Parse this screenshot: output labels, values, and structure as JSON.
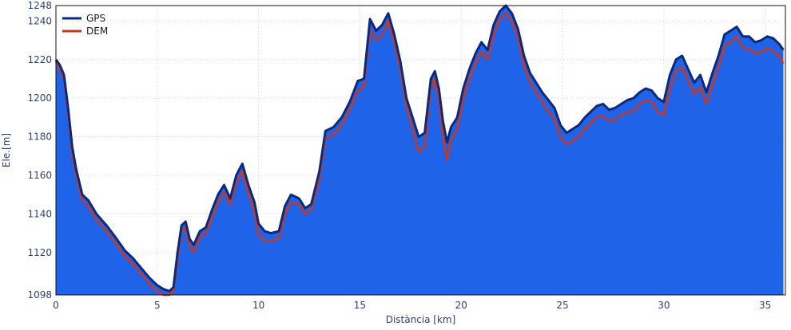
{
  "chart_data": {
    "type": "area",
    "xlabel": "Distància [km]",
    "ylabel": "Ele.[m]",
    "xlim": [
      0,
      36
    ],
    "ylim": [
      1098,
      1248
    ],
    "xticks": [
      0,
      5,
      10,
      15,
      20,
      25,
      30,
      35
    ],
    "yticks": [
      1098,
      1120,
      1140,
      1160,
      1180,
      1200,
      1220,
      1240,
      1248
    ],
    "grid": true,
    "legend_position": "top-left",
    "colors": {
      "fill": "#1f63e8",
      "gps_line": "#0b2a7a",
      "dem_line": "#c0392b",
      "grid": "#cfcfcf",
      "frame": "#111111",
      "tick_text": "#2f3e75"
    },
    "series": [
      {
        "name": "GPS",
        "x": [
          0,
          0.2,
          0.4,
          0.6,
          0.8,
          1.0,
          1.3,
          1.6,
          2.0,
          2.5,
          3.0,
          3.4,
          3.8,
          4.2,
          4.6,
          5.0,
          5.3,
          5.6,
          5.8,
          6.0,
          6.2,
          6.4,
          6.6,
          6.8,
          7.1,
          7.4,
          7.7,
          8.0,
          8.3,
          8.6,
          8.9,
          9.2,
          9.5,
          9.8,
          10.0,
          10.3,
          10.6,
          11.0,
          11.3,
          11.6,
          12.0,
          12.3,
          12.6,
          13.0,
          13.3,
          13.7,
          14.1,
          14.5,
          14.9,
          15.2,
          15.5,
          15.8,
          16.1,
          16.4,
          16.7,
          17.0,
          17.3,
          17.6,
          17.9,
          18.2,
          18.5,
          18.7,
          18.9,
          19.1,
          19.3,
          19.5,
          19.8,
          20.1,
          20.4,
          20.7,
          21.0,
          21.3,
          21.6,
          21.9,
          22.2,
          22.5,
          22.8,
          23.1,
          23.4,
          23.7,
          24.0,
          24.3,
          24.6,
          24.9,
          25.2,
          25.5,
          25.8,
          26.1,
          26.4,
          26.7,
          27.0,
          27.3,
          27.6,
          27.9,
          28.2,
          28.5,
          28.8,
          29.1,
          29.4,
          29.7,
          30.0,
          30.3,
          30.6,
          30.9,
          31.2,
          31.5,
          31.8,
          32.1,
          32.4,
          32.7,
          33.0,
          33.3,
          33.6,
          33.9,
          34.2,
          34.5,
          34.8,
          35.1,
          35.4,
          35.7,
          35.9
        ],
        "values": [
          1220,
          1217,
          1212,
          1195,
          1175,
          1163,
          1150,
          1147,
          1140,
          1134,
          1127,
          1121,
          1117,
          1112,
          1107,
          1103,
          1101,
          1100,
          1102,
          1120,
          1134,
          1136,
          1127,
          1124,
          1131,
          1133,
          1142,
          1150,
          1155,
          1148,
          1160,
          1166,
          1155,
          1146,
          1135,
          1131,
          1130,
          1131,
          1144,
          1150,
          1148,
          1143,
          1145,
          1162,
          1183,
          1185,
          1190,
          1198,
          1209,
          1210,
          1241,
          1235,
          1238,
          1244,
          1233,
          1219,
          1200,
          1190,
          1180,
          1182,
          1210,
          1214,
          1205,
          1188,
          1177,
          1185,
          1190,
          1205,
          1215,
          1223,
          1229,
          1225,
          1238,
          1245,
          1248,
          1244,
          1236,
          1222,
          1213,
          1208,
          1203,
          1199,
          1195,
          1186,
          1182,
          1184,
          1186,
          1190,
          1193,
          1196,
          1197,
          1194,
          1195,
          1197,
          1199,
          1200,
          1203,
          1205,
          1204,
          1200,
          1198,
          1212,
          1220,
          1222,
          1215,
          1208,
          1212,
          1203,
          1213,
          1222,
          1233,
          1235,
          1237,
          1232,
          1232,
          1229,
          1230,
          1232,
          1231,
          1228,
          1225
        ]
      },
      {
        "name": "DEM",
        "x": [
          0,
          0.2,
          0.4,
          0.6,
          0.8,
          1.0,
          1.3,
          1.6,
          2.0,
          2.5,
          3.0,
          3.4,
          3.8,
          4.2,
          4.6,
          5.0,
          5.3,
          5.6,
          5.8,
          6.0,
          6.2,
          6.4,
          6.6,
          6.8,
          7.1,
          7.4,
          7.7,
          8.0,
          8.3,
          8.6,
          8.9,
          9.2,
          9.5,
          9.8,
          10.0,
          10.3,
          10.6,
          11.0,
          11.3,
          11.6,
          12.0,
          12.3,
          12.6,
          13.0,
          13.3,
          13.7,
          14.1,
          14.5,
          14.9,
          15.2,
          15.5,
          15.8,
          16.1,
          16.4,
          16.7,
          17.0,
          17.3,
          17.6,
          17.9,
          18.2,
          18.5,
          18.7,
          18.9,
          19.1,
          19.3,
          19.5,
          19.8,
          20.1,
          20.4,
          20.7,
          21.0,
          21.3,
          21.6,
          21.9,
          22.2,
          22.5,
          22.8,
          23.1,
          23.4,
          23.7,
          24.0,
          24.3,
          24.6,
          24.9,
          25.2,
          25.5,
          25.8,
          26.1,
          26.4,
          26.7,
          27.0,
          27.3,
          27.6,
          27.9,
          28.2,
          28.5,
          28.8,
          29.1,
          29.4,
          29.7,
          30.0,
          30.3,
          30.6,
          30.9,
          31.2,
          31.5,
          31.8,
          32.1,
          32.4,
          32.7,
          33.0,
          33.3,
          33.6,
          33.9,
          34.2,
          34.5,
          34.8,
          35.1,
          35.4,
          35.7,
          35.9
        ],
        "values": [
          1219,
          1215,
          1210,
          1192,
          1171,
          1160,
          1147,
          1144,
          1137,
          1131,
          1124,
          1118,
          1114,
          1109,
          1104,
          1100,
          1098,
          1098,
          1100,
          1116,
          1131,
          1133,
          1123,
          1120,
          1128,
          1130,
          1138,
          1146,
          1151,
          1145,
          1156,
          1162,
          1151,
          1141,
          1129,
          1126,
          1126,
          1127,
          1140,
          1146,
          1145,
          1140,
          1142,
          1158,
          1179,
          1181,
          1186,
          1194,
          1204,
          1206,
          1236,
          1230,
          1233,
          1240,
          1229,
          1215,
          1196,
          1184,
          1172,
          1175,
          1205,
          1210,
          1199,
          1181,
          1168,
          1178,
          1184,
          1200,
          1210,
          1218,
          1224,
          1220,
          1233,
          1241,
          1244,
          1240,
          1232,
          1217,
          1208,
          1203,
          1198,
          1193,
          1189,
          1180,
          1176,
          1178,
          1180,
          1184,
          1187,
          1190,
          1191,
          1188,
          1189,
          1191,
          1193,
          1193,
          1197,
          1199,
          1198,
          1193,
          1191,
          1205,
          1214,
          1216,
          1209,
          1202,
          1206,
          1197,
          1207,
          1216,
          1227,
          1229,
          1232,
          1226,
          1226,
          1223,
          1224,
          1226,
          1224,
          1222,
          1218
        ]
      }
    ]
  }
}
